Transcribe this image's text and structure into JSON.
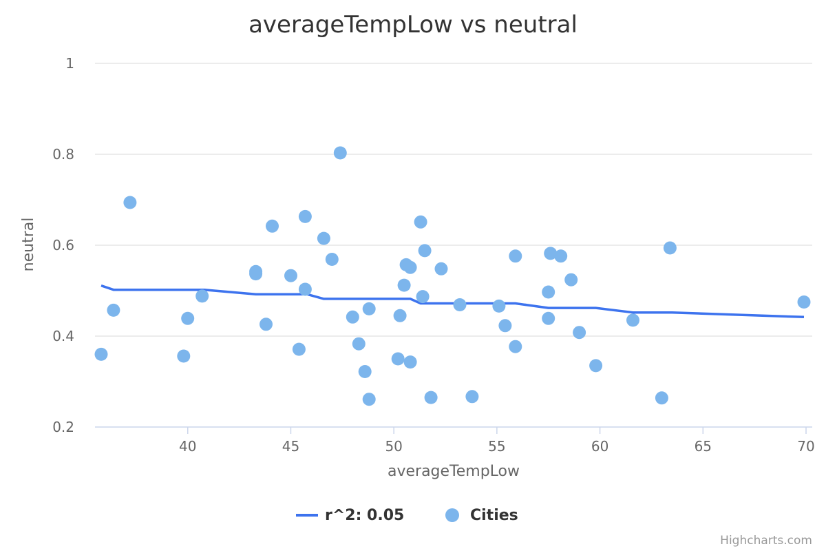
{
  "colors": {
    "scatter": "#7cb5ec",
    "regression": "#3d73ee"
  },
  "chart_data": {
    "type": "scatter",
    "title": "averageTempLow vs neutral",
    "xlabel": "averageTempLow",
    "ylabel": "neutral",
    "xlim": [
      35.5,
      70.3
    ],
    "ylim": [
      0.2,
      1.0
    ],
    "x_ticks": [
      40,
      45,
      50,
      55,
      60,
      65,
      70
    ],
    "y_ticks": [
      0.2,
      0.4,
      0.6,
      0.8,
      1
    ],
    "x_tick_labels": [
      "40",
      "45",
      "50",
      "55",
      "60",
      "65",
      "70"
    ],
    "y_tick_labels": [
      "0.2",
      "0.4",
      "0.6",
      "0.8",
      "1"
    ],
    "grid": true,
    "legend_position": "bottom-center",
    "series": [
      {
        "name": "r^2: 0.05",
        "type": "line",
        "points": [
          [
            35.8,
            0.511
          ],
          [
            36.4,
            0.502
          ],
          [
            40.8,
            0.502
          ],
          [
            43.3,
            0.492
          ],
          [
            45.8,
            0.492
          ],
          [
            46.6,
            0.482
          ],
          [
            50.8,
            0.482
          ],
          [
            51.3,
            0.472
          ],
          [
            55.9,
            0.472
          ],
          [
            57.5,
            0.462
          ],
          [
            59.8,
            0.462
          ],
          [
            61.6,
            0.452
          ],
          [
            63.5,
            0.452
          ],
          [
            69.9,
            0.442
          ]
        ]
      },
      {
        "name": "Cities",
        "type": "scatter",
        "points": [
          [
            35.8,
            0.36
          ],
          [
            36.4,
            0.457
          ],
          [
            37.2,
            0.694
          ],
          [
            39.8,
            0.356
          ],
          [
            40.0,
            0.439
          ],
          [
            40.7,
            0.488
          ],
          [
            43.3,
            0.542
          ],
          [
            43.3,
            0.537
          ],
          [
            43.8,
            0.426
          ],
          [
            44.1,
            0.642
          ],
          [
            45.0,
            0.533
          ],
          [
            45.4,
            0.371
          ],
          [
            45.7,
            0.503
          ],
          [
            45.7,
            0.663
          ],
          [
            46.6,
            0.615
          ],
          [
            47.0,
            0.569
          ],
          [
            47.4,
            0.803
          ],
          [
            48.0,
            0.442
          ],
          [
            48.3,
            0.383
          ],
          [
            48.6,
            0.322
          ],
          [
            48.8,
            0.46
          ],
          [
            48.8,
            0.261
          ],
          [
            50.2,
            0.35
          ],
          [
            50.3,
            0.445
          ],
          [
            50.5,
            0.512
          ],
          [
            50.6,
            0.557
          ],
          [
            50.8,
            0.551
          ],
          [
            50.8,
            0.343
          ],
          [
            51.3,
            0.651
          ],
          [
            51.4,
            0.487
          ],
          [
            51.5,
            0.588
          ],
          [
            51.8,
            0.265
          ],
          [
            52.3,
            0.548
          ],
          [
            53.2,
            0.469
          ],
          [
            53.8,
            0.267
          ],
          [
            55.1,
            0.466
          ],
          [
            55.4,
            0.423
          ],
          [
            55.9,
            0.576
          ],
          [
            55.9,
            0.377
          ],
          [
            57.5,
            0.497
          ],
          [
            57.5,
            0.439
          ],
          [
            57.6,
            0.582
          ],
          [
            58.1,
            0.576
          ],
          [
            58.6,
            0.524
          ],
          [
            59.0,
            0.408
          ],
          [
            59.8,
            0.335
          ],
          [
            61.6,
            0.435
          ],
          [
            63.0,
            0.264
          ],
          [
            63.4,
            0.594
          ],
          [
            69.9,
            0.475
          ]
        ]
      }
    ]
  },
  "credits": "Highcharts.com"
}
